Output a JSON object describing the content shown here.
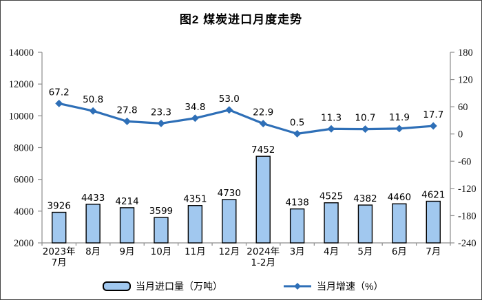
{
  "title": "图2 煤炭进口月度走势",
  "legend": {
    "bar_label": "当月进口量（万吨）",
    "line_label": "当月增速（%）"
  },
  "chart_data": {
    "type": "bar+line",
    "title": "图2 煤炭进口月度走势",
    "categories": [
      "2023年\n7月",
      "8月",
      "9月",
      "10月",
      "11月",
      "12月",
      "2024年\n1-2月",
      "3月",
      "4月",
      "5月",
      "6月",
      "7月"
    ],
    "series": [
      {
        "name": "当月进口量（万吨）",
        "type": "bar",
        "axis": "left",
        "values": [
          3926,
          4433,
          4214,
          3599,
          4351,
          4730,
          7452,
          4138,
          4525,
          4382,
          4460,
          4621
        ],
        "label_decimals": 0
      },
      {
        "name": "当月增速（%）",
        "type": "line",
        "axis": "right",
        "values": [
          67.2,
          50.8,
          27.8,
          23.3,
          34.8,
          53.0,
          22.9,
          0.5,
          11.3,
          10.7,
          11.9,
          17.7
        ],
        "label_decimals": 1
      }
    ],
    "left_axis": {
      "min": 2000,
      "max": 14000,
      "step": 2000
    },
    "right_axis": {
      "min": -240,
      "max": 180,
      "step": 60
    },
    "legend_position": "bottom",
    "gridlines": false,
    "colors": {
      "bar_fill": "#A1C8EF",
      "bar_border": "#000000",
      "line": "#2E6FB7",
      "axis": "#8C8C8C"
    }
  }
}
